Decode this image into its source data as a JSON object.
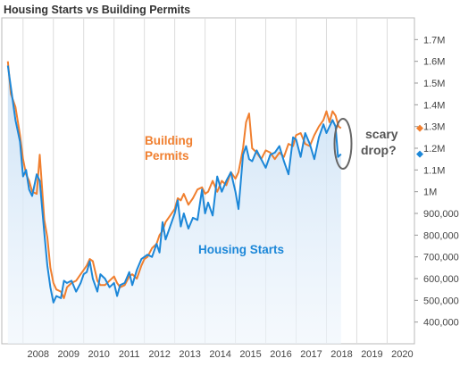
{
  "chart_data": {
    "type": "line",
    "title": "Housing Starts vs Building Permits",
    "xlabel": "",
    "ylabel": "",
    "xlim": [
      2007.3,
      2020.9
    ],
    "ylim": [
      300000,
      1800000
    ],
    "x_ticks": [
      "2008",
      "2009",
      "2010",
      "2011",
      "2012",
      "2013",
      "2014",
      "2015",
      "2016",
      "2017",
      "2018",
      "2019",
      "2020"
    ],
    "y_ticks": [
      {
        "value": 400000,
        "label": "400,000"
      },
      {
        "value": 500000,
        "label": "500,000"
      },
      {
        "value": 600000,
        "label": "600,000"
      },
      {
        "value": 700000,
        "label": "700,000"
      },
      {
        "value": 800000,
        "label": "800,000"
      },
      {
        "value": 900000,
        "label": "900,000"
      },
      {
        "value": 1000000,
        "label": "1M"
      },
      {
        "value": 1100000,
        "label": "1.1M"
      },
      {
        "value": 1200000,
        "label": "1.2M"
      },
      {
        "value": 1300000,
        "label": "1.3M"
      },
      {
        "value": 1400000,
        "label": "1.4M"
      },
      {
        "value": 1500000,
        "label": "1.5M"
      },
      {
        "value": 1600000,
        "label": "1.6M"
      },
      {
        "value": 1700000,
        "label": "1.7M"
      }
    ],
    "grid": "vertical",
    "series": [
      {
        "name": "Building Permits",
        "color": "#f07f2f",
        "label": "Building\nPermits",
        "last_value_marker": 1292000,
        "points": [
          [
            2007.5,
            1600000
          ],
          [
            2007.6,
            1450000
          ],
          [
            2007.75,
            1390000
          ],
          [
            2007.9,
            1260000
          ],
          [
            2008.0,
            1150000
          ],
          [
            2008.1,
            1080000
          ],
          [
            2008.2,
            1050000
          ],
          [
            2008.3,
            1000000
          ],
          [
            2008.45,
            990000
          ],
          [
            2008.55,
            1170000
          ],
          [
            2008.7,
            870000
          ],
          [
            2008.8,
            790000
          ],
          [
            2008.9,
            650000
          ],
          [
            2009.0,
            580000
          ],
          [
            2009.1,
            550000
          ],
          [
            2009.25,
            540000
          ],
          [
            2009.35,
            510000
          ],
          [
            2009.45,
            560000
          ],
          [
            2009.6,
            580000
          ],
          [
            2009.75,
            590000
          ],
          [
            2009.9,
            620000
          ],
          [
            2010.0,
            640000
          ],
          [
            2010.1,
            660000
          ],
          [
            2010.2,
            690000
          ],
          [
            2010.3,
            680000
          ],
          [
            2010.45,
            590000
          ],
          [
            2010.55,
            570000
          ],
          [
            2010.7,
            570000
          ],
          [
            2010.85,
            590000
          ],
          [
            2011.0,
            610000
          ],
          [
            2011.1,
            580000
          ],
          [
            2011.2,
            560000
          ],
          [
            2011.35,
            570000
          ],
          [
            2011.5,
            610000
          ],
          [
            2011.6,
            620000
          ],
          [
            2011.75,
            600000
          ],
          [
            2011.9,
            660000
          ],
          [
            2012.0,
            690000
          ],
          [
            2012.1,
            700000
          ],
          [
            2012.25,
            740000
          ],
          [
            2012.4,
            760000
          ],
          [
            2012.5,
            800000
          ],
          [
            2012.6,
            820000
          ],
          [
            2012.7,
            860000
          ],
          [
            2012.85,
            890000
          ],
          [
            2013.0,
            920000
          ],
          [
            2013.1,
            970000
          ],
          [
            2013.2,
            960000
          ],
          [
            2013.3,
            990000
          ],
          [
            2013.45,
            940000
          ],
          [
            2013.6,
            970000
          ],
          [
            2013.75,
            1010000
          ],
          [
            2013.9,
            1020000
          ],
          [
            2014.0,
            990000
          ],
          [
            2014.1,
            1000000
          ],
          [
            2014.25,
            1050000
          ],
          [
            2014.4,
            1000000
          ],
          [
            2014.55,
            1050000
          ],
          [
            2014.7,
            1030000
          ],
          [
            2014.85,
            1090000
          ],
          [
            2015.0,
            1060000
          ],
          [
            2015.1,
            1090000
          ],
          [
            2015.25,
            1200000
          ],
          [
            2015.35,
            1320000
          ],
          [
            2015.45,
            1360000
          ],
          [
            2015.55,
            1200000
          ],
          [
            2015.7,
            1180000
          ],
          [
            2015.85,
            1150000
          ],
          [
            2016.0,
            1190000
          ],
          [
            2016.15,
            1180000
          ],
          [
            2016.3,
            1150000
          ],
          [
            2016.45,
            1180000
          ],
          [
            2016.6,
            1160000
          ],
          [
            2016.75,
            1220000
          ],
          [
            2016.9,
            1210000
          ],
          [
            2017.0,
            1260000
          ],
          [
            2017.15,
            1270000
          ],
          [
            2017.3,
            1220000
          ],
          [
            2017.45,
            1210000
          ],
          [
            2017.6,
            1260000
          ],
          [
            2017.75,
            1300000
          ],
          [
            2017.9,
            1330000
          ],
          [
            2018.0,
            1370000
          ],
          [
            2018.1,
            1320000
          ],
          [
            2018.2,
            1370000
          ],
          [
            2018.3,
            1350000
          ],
          [
            2018.4,
            1300000
          ],
          [
            2018.48,
            1292000
          ]
        ]
      },
      {
        "name": "Housing Starts",
        "color": "#1c87d8",
        "label": "Housing Starts",
        "last_value_marker": 1173000,
        "points": [
          [
            2007.5,
            1580000
          ],
          [
            2007.6,
            1480000
          ],
          [
            2007.75,
            1330000
          ],
          [
            2007.9,
            1230000
          ],
          [
            2008.0,
            1070000
          ],
          [
            2008.1,
            1100000
          ],
          [
            2008.2,
            1010000
          ],
          [
            2008.3,
            980000
          ],
          [
            2008.45,
            1080000
          ],
          [
            2008.55,
            1050000
          ],
          [
            2008.7,
            810000
          ],
          [
            2008.8,
            660000
          ],
          [
            2008.9,
            560000
          ],
          [
            2009.0,
            490000
          ],
          [
            2009.1,
            520000
          ],
          [
            2009.25,
            510000
          ],
          [
            2009.35,
            590000
          ],
          [
            2009.45,
            580000
          ],
          [
            2009.6,
            590000
          ],
          [
            2009.75,
            540000
          ],
          [
            2009.9,
            580000
          ],
          [
            2010.0,
            620000
          ],
          [
            2010.1,
            630000
          ],
          [
            2010.2,
            680000
          ],
          [
            2010.3,
            600000
          ],
          [
            2010.45,
            540000
          ],
          [
            2010.55,
            620000
          ],
          [
            2010.7,
            600000
          ],
          [
            2010.85,
            560000
          ],
          [
            2011.0,
            580000
          ],
          [
            2011.1,
            520000
          ],
          [
            2011.2,
            570000
          ],
          [
            2011.35,
            580000
          ],
          [
            2011.5,
            630000
          ],
          [
            2011.6,
            570000
          ],
          [
            2011.75,
            640000
          ],
          [
            2011.9,
            690000
          ],
          [
            2012.0,
            700000
          ],
          [
            2012.1,
            710000
          ],
          [
            2012.25,
            700000
          ],
          [
            2012.4,
            760000
          ],
          [
            2012.5,
            720000
          ],
          [
            2012.6,
            860000
          ],
          [
            2012.7,
            780000
          ],
          [
            2012.85,
            840000
          ],
          [
            2013.0,
            900000
          ],
          [
            2013.1,
            960000
          ],
          [
            2013.2,
            840000
          ],
          [
            2013.3,
            900000
          ],
          [
            2013.45,
            830000
          ],
          [
            2013.6,
            880000
          ],
          [
            2013.75,
            870000
          ],
          [
            2013.9,
            1010000
          ],
          [
            2014.0,
            900000
          ],
          [
            2014.1,
            950000
          ],
          [
            2014.25,
            890000
          ],
          [
            2014.4,
            1070000
          ],
          [
            2014.55,
            1000000
          ],
          [
            2014.7,
            1050000
          ],
          [
            2014.85,
            1090000
          ],
          [
            2015.0,
            1000000
          ],
          [
            2015.1,
            920000
          ],
          [
            2015.25,
            1170000
          ],
          [
            2015.35,
            1210000
          ],
          [
            2015.45,
            1150000
          ],
          [
            2015.55,
            1140000
          ],
          [
            2015.7,
            1190000
          ],
          [
            2015.85,
            1150000
          ],
          [
            2016.0,
            1110000
          ],
          [
            2016.15,
            1170000
          ],
          [
            2016.3,
            1180000
          ],
          [
            2016.45,
            1210000
          ],
          [
            2016.6,
            1140000
          ],
          [
            2016.75,
            1080000
          ],
          [
            2016.9,
            1250000
          ],
          [
            2017.0,
            1240000
          ],
          [
            2017.15,
            1160000
          ],
          [
            2017.3,
            1270000
          ],
          [
            2017.45,
            1220000
          ],
          [
            2017.6,
            1150000
          ],
          [
            2017.75,
            1250000
          ],
          [
            2017.9,
            1310000
          ],
          [
            2018.0,
            1270000
          ],
          [
            2018.1,
            1300000
          ],
          [
            2018.2,
            1330000
          ],
          [
            2018.3,
            1300000
          ],
          [
            2018.38,
            1160000
          ],
          [
            2018.48,
            1173000
          ]
        ]
      }
    ],
    "annotations": [
      {
        "text": "scary\ndrop?",
        "type": "ellipse",
        "x": 2018.4,
        "y": 1225000
      }
    ]
  }
}
